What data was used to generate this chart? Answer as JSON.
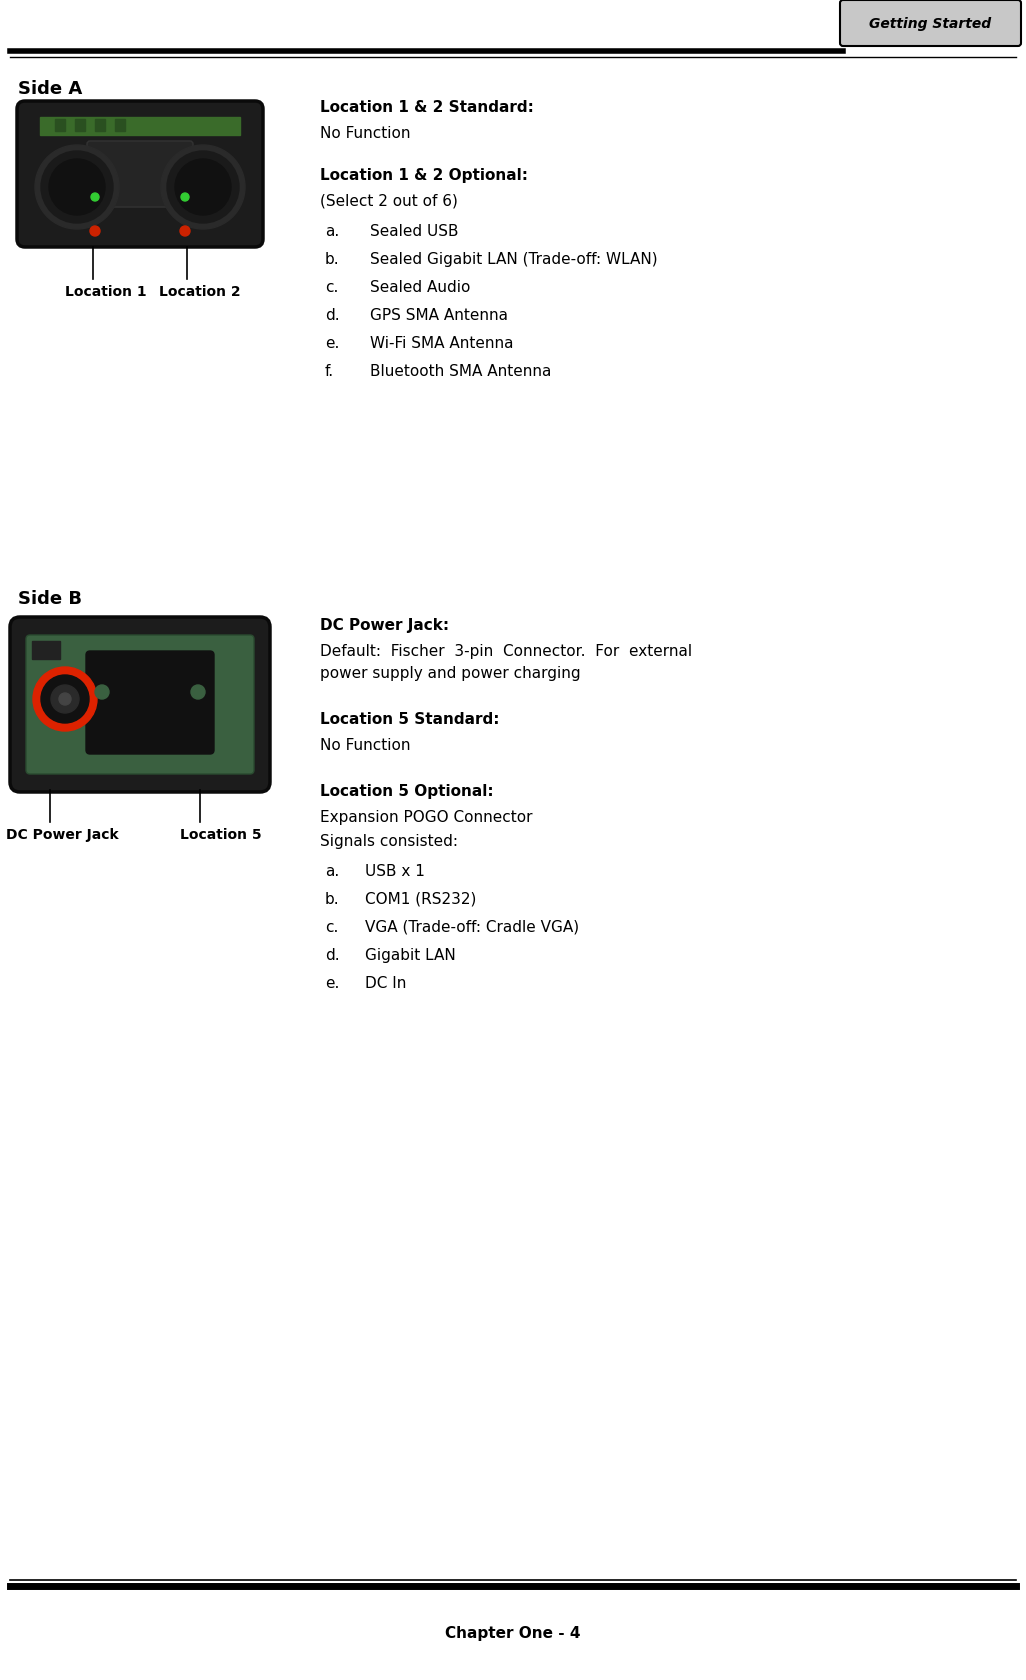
{
  "page_width": 10.26,
  "page_height": 16.81,
  "bg_color": "#ffffff",
  "text_color": "#000000",
  "header_tab_text": "Getting Started",
  "header_tab_bg": "#c8c8c8",
  "header_tab_border": "#000000",
  "footer_text": "Chapter One - 4",
  "side_a_label": "Side A",
  "side_b_label": "Side B",
  "loc1_label": "Location 1",
  "loc2_label": "Location 2",
  "loc5_label": "Location 5",
  "dc_jack_label": "DC Power Jack",
  "section_a_title1": "Location 1 & 2 Standard:",
  "section_a_body1": "No Function",
  "section_a_title2": "Location 1 & 2 Optional:",
  "section_a_body2_intro": "(Select 2 out of 6)",
  "section_a_items": [
    [
      "a.",
      "Sealed USB"
    ],
    [
      "b.",
      "Sealed Gigabit LAN (Trade-off: WLAN)"
    ],
    [
      "c.",
      "Sealed Audio"
    ],
    [
      "d.",
      "GPS SMA Antenna"
    ],
    [
      "e.",
      "Wi-Fi SMA Antenna"
    ],
    [
      "f.",
      "Bluetooth SMA Antenna"
    ]
  ],
  "section_b_dc_title": "DC Power Jack:",
  "section_b_dc_body1": "Default:  Fischer  3-pin  Connector.  For  external",
  "section_b_dc_body2": "power supply and power charging",
  "section_b_title1": "Location 5 Standard:",
  "section_b_body1": "No Function",
  "section_b_title2": "Location 5 Optional:",
  "section_b_body2_intro": "Expansion POGO Connector",
  "section_b_body2_intro2": "Signals consisted:",
  "section_b_items": [
    [
      "a.",
      "USB x 1"
    ],
    [
      "b.",
      "COM1 (RS232)"
    ],
    [
      "c.",
      "VGA (Trade-off: Cradle VGA)"
    ],
    [
      "d.",
      "Gigabit LAN"
    ],
    [
      "e.",
      "DC In"
    ]
  ],
  "body_fontsize": 11,
  "bold_fontsize": 11,
  "side_label_fontsize": 13,
  "footer_fontsize": 11,
  "tab_fontsize": 10,
  "label_fontsize": 10
}
